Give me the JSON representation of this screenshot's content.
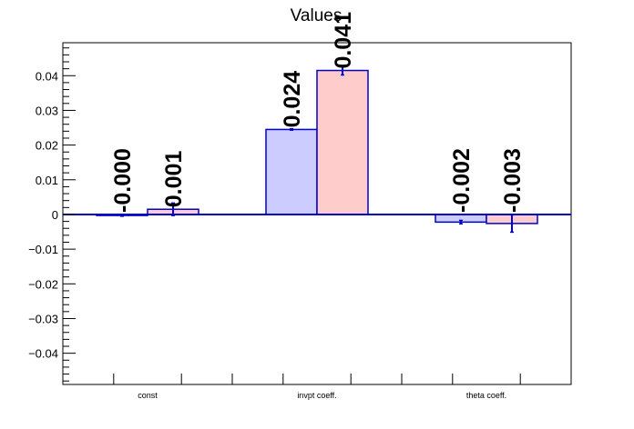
{
  "chart_data": {
    "type": "bar",
    "title": "Values",
    "xlabel": "",
    "ylabel": "",
    "categories": [
      "const",
      "invpt coeff.",
      "theta coeff."
    ],
    "ylim": [
      -0.049,
      0.0495
    ],
    "yticks": [
      -0.04,
      -0.03,
      -0.02,
      -0.01,
      0,
      0.01,
      0.02,
      0.03,
      0.04
    ],
    "ytick_labels": [
      "−0.04",
      "−0.03",
      "−0.02",
      "−0.01",
      "0",
      "0.01",
      "0.02",
      "0.03",
      "0.04"
    ],
    "grid": false,
    "series": [
      {
        "color": "#ccccff",
        "edge_color": "#0000cc",
        "values": [
          -0.0003,
          0.0245,
          -0.0022
        ],
        "errors": [
          0.0002,
          0.0002,
          0.0005
        ],
        "labels": [
          "-0.000",
          "0.024",
          "-0.002"
        ]
      },
      {
        "color": "#ffcccc",
        "edge_color": "#0000cc",
        "values": [
          0.0015,
          0.0415,
          -0.0026
        ],
        "errors": [
          0.0018,
          0.0013,
          0.0025
        ],
        "labels": [
          "0.001",
          "0.041",
          "-0.003"
        ]
      }
    ]
  }
}
